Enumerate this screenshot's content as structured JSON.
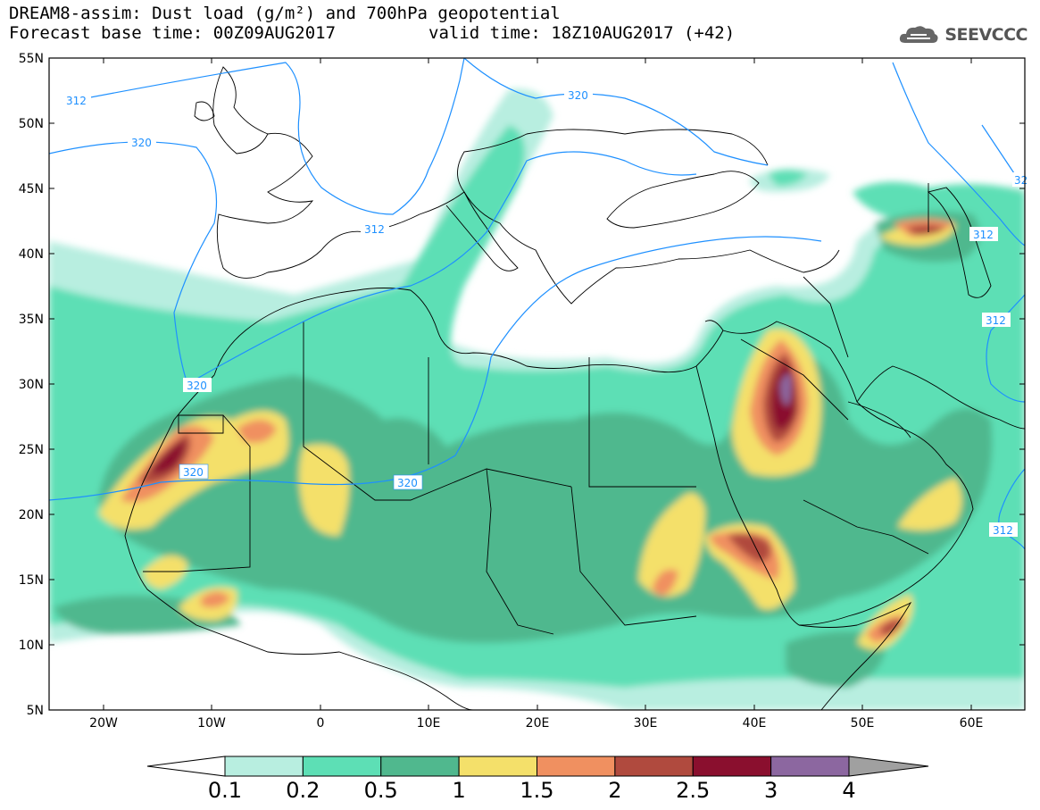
{
  "header": {
    "title": "DREAM8-assim: Dust load (g/m²) and 700hPa geopotential",
    "base_time": "Forecast base time: 00Z09AUG2017",
    "valid_time": "valid time: 18Z10AUG2017 (+42)",
    "logo_text": "SEEVCCC",
    "logo_icon": "cloud-icon"
  },
  "map": {
    "lat_labels": [
      "55N",
      "50N",
      "45N",
      "40N",
      "35N",
      "30N",
      "25N",
      "20N",
      "15N",
      "10N",
      "5N"
    ],
    "lon_labels": [
      "20W",
      "10W",
      "0",
      "10E",
      "20E",
      "30E",
      "40E",
      "50E",
      "60E"
    ],
    "contour_labels": [
      "312",
      "320",
      "312",
      "320",
      "320",
      "320",
      "320",
      "312",
      "312",
      "312",
      "32"
    ],
    "colors": {
      "land_outline": "#000000",
      "geopotential": "#1e90ff"
    }
  },
  "colorbar": {
    "labels": [
      "0.1",
      "0.2",
      "0.5",
      "1",
      "1.5",
      "2",
      "2.5",
      "3",
      "4"
    ],
    "colors": [
      "#b8eee0",
      "#5ddfb5",
      "#50b88e",
      "#f4e06a",
      "#f09060",
      "#b04a3e",
      "#8a0f2e",
      "#8c67a0"
    ],
    "over_color": "#a0a0a0",
    "under_color": "#ffffff"
  }
}
